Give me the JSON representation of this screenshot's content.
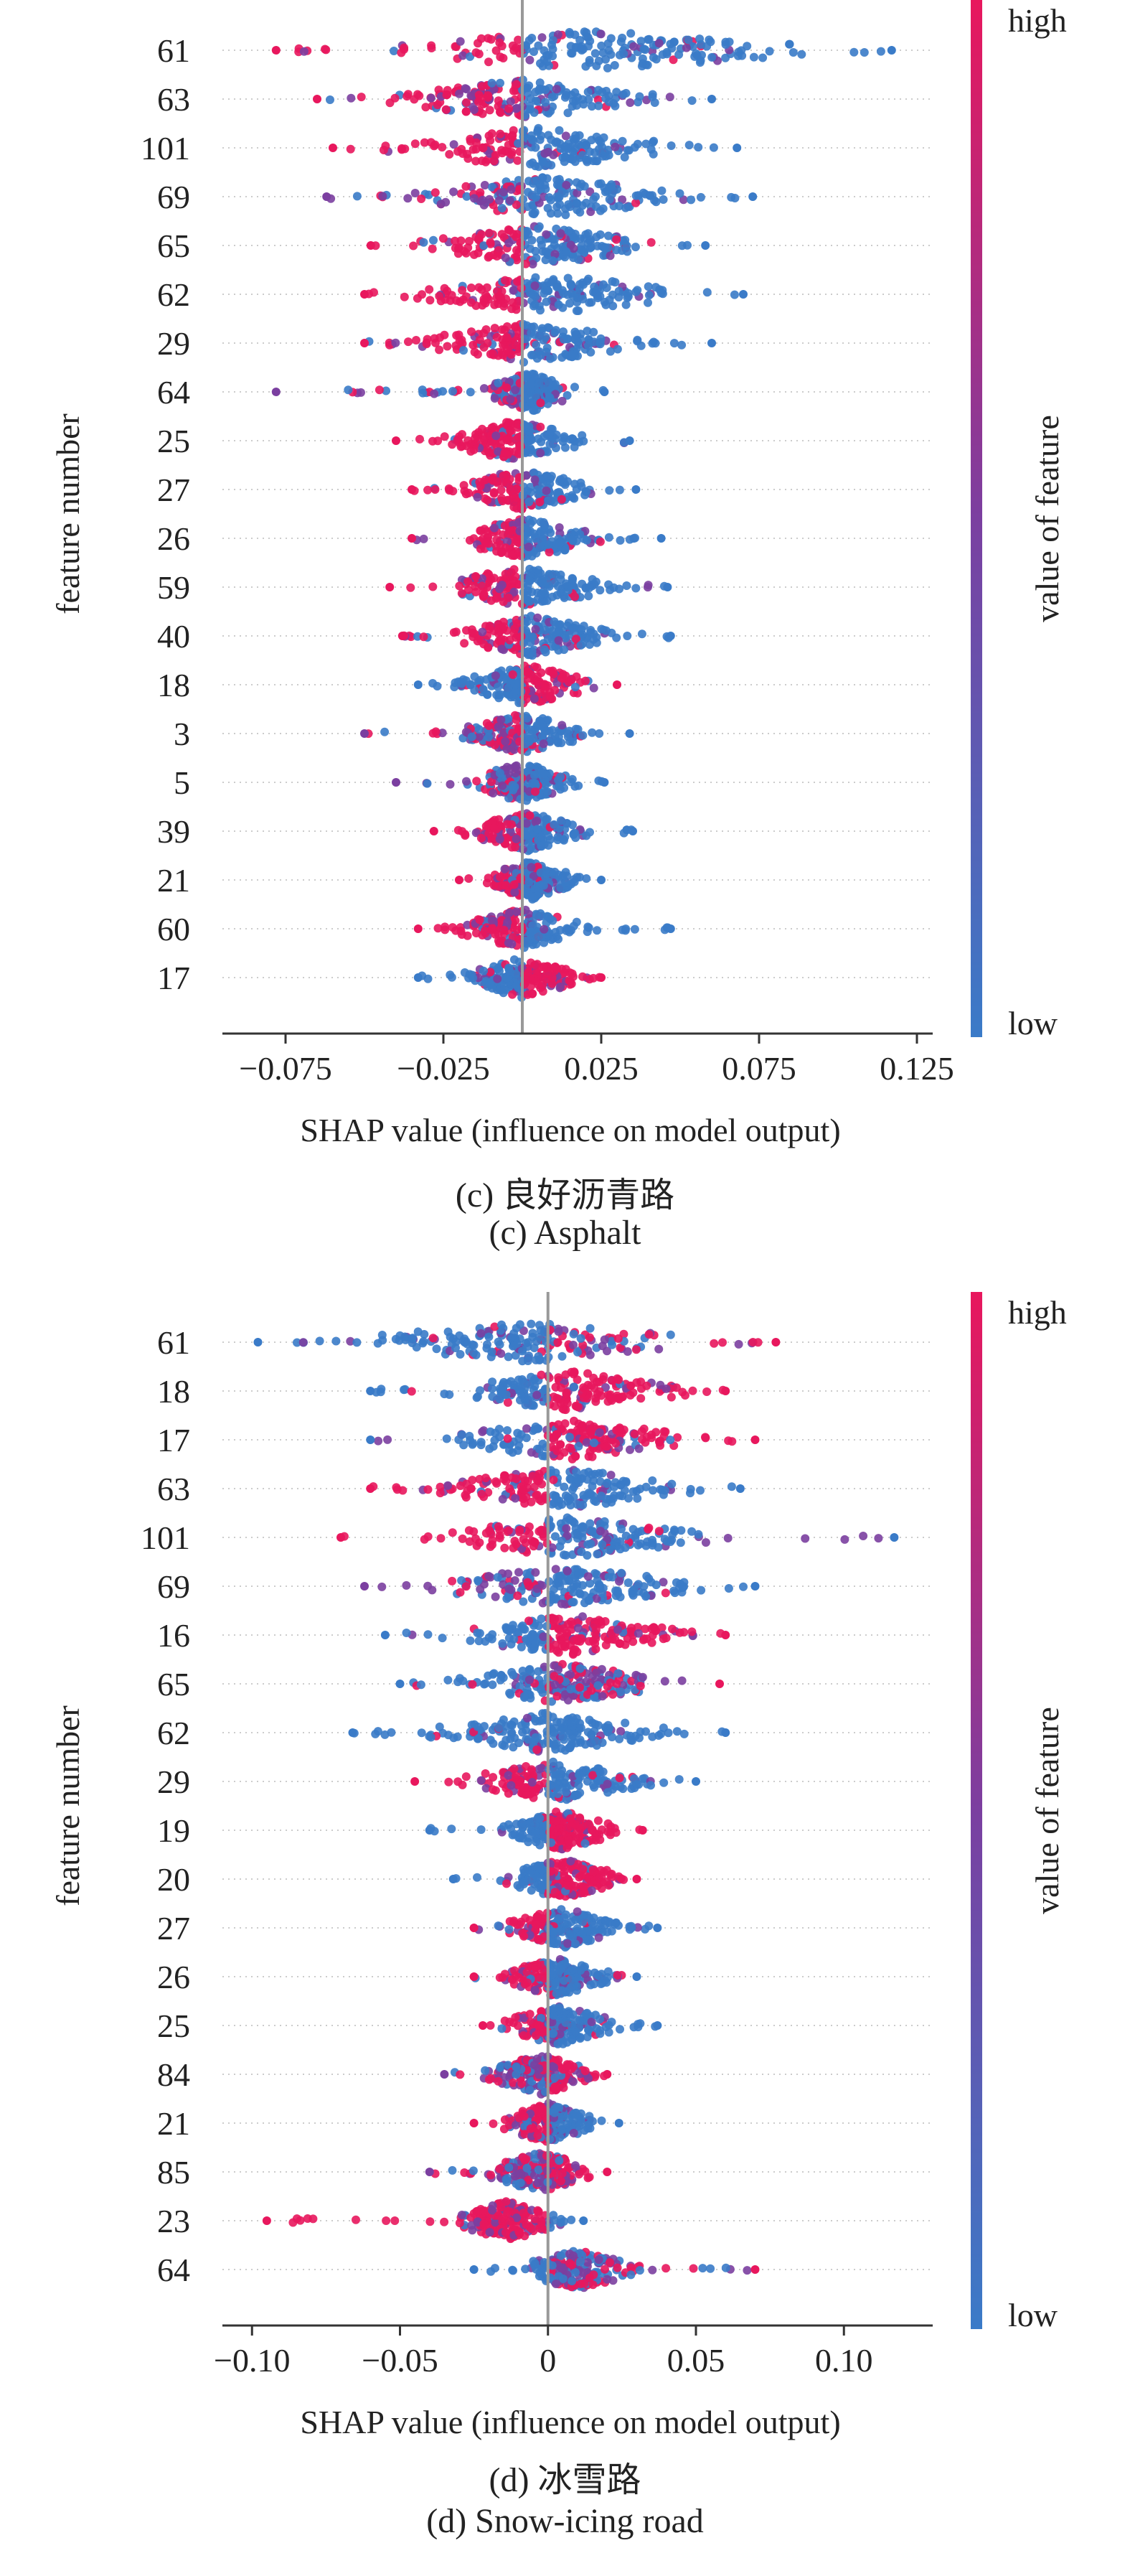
{
  "colorbar": {
    "high_label": "high",
    "low_label": "low",
    "title": "value of feature",
    "color_high": "#e8175d",
    "color_mid": "#7b3fa0",
    "color_low": "#3a7bc8"
  },
  "chart_data": [
    {
      "type": "scatter",
      "subtype": "shap-beeswarm",
      "panel": "c",
      "caption_zh": "(c) 良好沥青路",
      "caption_en": "(c) Asphalt",
      "xlabel": "SHAP value (influence on model output)",
      "ylabel": "feature number",
      "xlim": [
        -0.095,
        0.13
      ],
      "xticks": [
        -0.075,
        -0.025,
        0.025,
        0.075,
        0.125
      ],
      "xtick_labels": [
        "−0.075",
        "−0.025",
        "0.025",
        "0.075",
        "0.125"
      ],
      "baseline": 0.0,
      "features": [
        {
          "name": "61",
          "min": -0.078,
          "max": 0.117,
          "dense_min": -0.06,
          "dense_max": 0.105,
          "neg": "high",
          "pos": "low"
        },
        {
          "name": "63",
          "min": -0.065,
          "max": 0.06,
          "dense_min": -0.05,
          "dense_max": 0.05,
          "neg": "high",
          "pos": "low"
        },
        {
          "name": "101",
          "min": -0.06,
          "max": 0.068,
          "dense_min": -0.05,
          "dense_max": 0.058,
          "neg": "high",
          "pos": "low"
        },
        {
          "name": "69",
          "min": -0.062,
          "max": 0.073,
          "dense_min": -0.045,
          "dense_max": 0.062,
          "neg": "mix",
          "pos": "low"
        },
        {
          "name": "65",
          "min": -0.048,
          "max": 0.058,
          "dense_min": -0.04,
          "dense_max": 0.05,
          "neg": "high",
          "pos": "low"
        },
        {
          "name": "62",
          "min": -0.05,
          "max": 0.07,
          "dense_min": -0.042,
          "dense_max": 0.06,
          "neg": "high",
          "pos": "low"
        },
        {
          "name": "29",
          "min": -0.05,
          "max": 0.06,
          "dense_min": -0.04,
          "dense_max": 0.045,
          "neg": "high",
          "pos": "low"
        },
        {
          "name": "64",
          "min": -0.078,
          "max": 0.026,
          "dense_min": -0.015,
          "dense_max": 0.02,
          "neg": "mix",
          "pos": "low"
        },
        {
          "name": "25",
          "min": -0.04,
          "max": 0.034,
          "dense_min": -0.03,
          "dense_max": 0.025,
          "neg": "high",
          "pos": "low"
        },
        {
          "name": "27",
          "min": -0.035,
          "max": 0.036,
          "dense_min": -0.028,
          "dense_max": 0.028,
          "neg": "high",
          "pos": "low"
        },
        {
          "name": "26",
          "min": -0.035,
          "max": 0.044,
          "dense_min": -0.028,
          "dense_max": 0.03,
          "neg": "high",
          "pos": "low"
        },
        {
          "name": "59",
          "min": -0.042,
          "max": 0.046,
          "dense_min": -0.035,
          "dense_max": 0.035,
          "neg": "high",
          "pos": "low"
        },
        {
          "name": "40",
          "min": -0.038,
          "max": 0.047,
          "dense_min": -0.03,
          "dense_max": 0.035,
          "neg": "high",
          "pos": "low"
        },
        {
          "name": "18",
          "min": -0.033,
          "max": 0.03,
          "dense_min": -0.025,
          "dense_max": 0.028,
          "neg": "low",
          "pos": "high"
        },
        {
          "name": "3",
          "min": -0.05,
          "max": 0.034,
          "dense_min": -0.025,
          "dense_max": 0.025,
          "neg": "mix",
          "pos": "low"
        },
        {
          "name": "5",
          "min": -0.04,
          "max": 0.026,
          "dense_min": -0.02,
          "dense_max": 0.02,
          "neg": "mix",
          "pos": "low"
        },
        {
          "name": "39",
          "min": -0.028,
          "max": 0.035,
          "dense_min": -0.022,
          "dense_max": 0.025,
          "neg": "high",
          "pos": "low"
        },
        {
          "name": "21",
          "min": -0.02,
          "max": 0.025,
          "dense_min": -0.015,
          "dense_max": 0.02,
          "neg": "high",
          "pos": "low"
        },
        {
          "name": "60",
          "min": -0.033,
          "max": 0.047,
          "dense_min": -0.025,
          "dense_max": 0.025,
          "neg": "high",
          "pos": "low"
        },
        {
          "name": "17",
          "min": -0.033,
          "max": 0.025,
          "dense_min": -0.025,
          "dense_max": 0.025,
          "neg": "low",
          "pos": "high"
        }
      ]
    },
    {
      "type": "scatter",
      "subtype": "shap-beeswarm",
      "panel": "d",
      "caption_zh": "(d) 冰雪路",
      "caption_en": "(d) Snow-icing road",
      "xlabel": "SHAP value (influence on model output)",
      "ylabel": "feature number",
      "xlim": [
        -0.11,
        0.13
      ],
      "xticks": [
        -0.1,
        -0.05,
        0.0,
        0.05,
        0.1
      ],
      "xtick_labels": [
        "−0.10",
        "−0.05",
        "0",
        "0.05",
        "0.10"
      ],
      "baseline": 0.0,
      "features": [
        {
          "name": "61",
          "min": -0.098,
          "max": 0.077,
          "dense_min": -0.08,
          "dense_max": 0.065,
          "neg": "low",
          "pos": "mix"
        },
        {
          "name": "18",
          "min": -0.06,
          "max": 0.06,
          "dense_min": -0.04,
          "dense_max": 0.055,
          "neg": "low",
          "pos": "high"
        },
        {
          "name": "17",
          "min": -0.06,
          "max": 0.07,
          "dense_min": -0.045,
          "dense_max": 0.06,
          "neg": "low",
          "pos": "high"
        },
        {
          "name": "63",
          "min": -0.06,
          "max": 0.065,
          "dense_min": -0.05,
          "dense_max": 0.06,
          "neg": "high",
          "pos": "low"
        },
        {
          "name": "101",
          "min": -0.07,
          "max": 0.117,
          "dense_min": -0.05,
          "dense_max": 0.065,
          "neg": "high",
          "pos": "low"
        },
        {
          "name": "69",
          "min": -0.062,
          "max": 0.07,
          "dense_min": -0.05,
          "dense_max": 0.06,
          "neg": "mix",
          "pos": "low"
        },
        {
          "name": "16",
          "min": -0.055,
          "max": 0.06,
          "dense_min": -0.04,
          "dense_max": 0.055,
          "neg": "low",
          "pos": "high"
        },
        {
          "name": "65",
          "min": -0.05,
          "max": 0.058,
          "dense_min": -0.04,
          "dense_max": 0.05,
          "neg": "low",
          "pos": "mix"
        },
        {
          "name": "62",
          "min": -0.066,
          "max": 0.06,
          "dense_min": -0.05,
          "dense_max": 0.05,
          "neg": "low",
          "pos": "low"
        },
        {
          "name": "29",
          "min": -0.045,
          "max": 0.05,
          "dense_min": -0.035,
          "dense_max": 0.04,
          "neg": "high",
          "pos": "low"
        },
        {
          "name": "19",
          "min": -0.04,
          "max": 0.032,
          "dense_min": -0.02,
          "dense_max": 0.028,
          "neg": "low",
          "pos": "high"
        },
        {
          "name": "20",
          "min": -0.032,
          "max": 0.03,
          "dense_min": -0.02,
          "dense_max": 0.03,
          "neg": "low",
          "pos": "high"
        },
        {
          "name": "27",
          "min": -0.025,
          "max": 0.037,
          "dense_min": -0.02,
          "dense_max": 0.03,
          "neg": "high",
          "pos": "low"
        },
        {
          "name": "26",
          "min": -0.025,
          "max": 0.03,
          "dense_min": -0.02,
          "dense_max": 0.025,
          "neg": "high",
          "pos": "low"
        },
        {
          "name": "25",
          "min": -0.022,
          "max": 0.037,
          "dense_min": -0.02,
          "dense_max": 0.028,
          "neg": "high",
          "pos": "low"
        },
        {
          "name": "84",
          "min": -0.035,
          "max": 0.02,
          "dense_min": -0.025,
          "dense_max": 0.02,
          "neg": "mix",
          "pos": "high"
        },
        {
          "name": "21",
          "min": -0.025,
          "max": 0.024,
          "dense_min": -0.02,
          "dense_max": 0.02,
          "neg": "high",
          "pos": "low"
        },
        {
          "name": "85",
          "min": -0.04,
          "max": 0.02,
          "dense_min": -0.025,
          "dense_max": 0.02,
          "neg": "mix",
          "pos": "high"
        },
        {
          "name": "23",
          "min": -0.095,
          "max": 0.012,
          "dense_min": -0.035,
          "dense_max": 0.008,
          "neg": "high",
          "pos": "low"
        },
        {
          "name": "64",
          "min": -0.025,
          "max": 0.07,
          "dense_min": -0.015,
          "dense_max": 0.035,
          "neg": "low",
          "pos": "mix"
        }
      ]
    }
  ]
}
